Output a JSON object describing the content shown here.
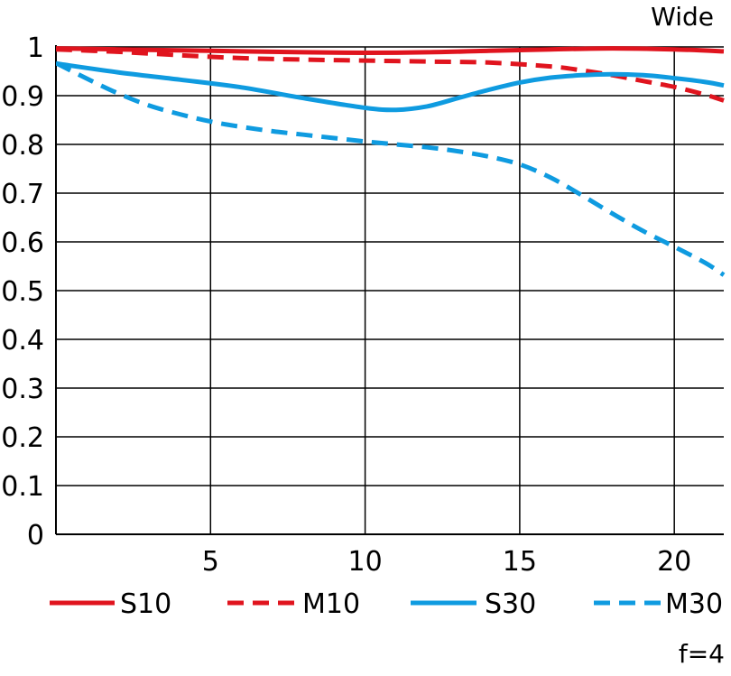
{
  "chart_data": {
    "type": "line",
    "title": "Wide",
    "footnote": "f=4",
    "xlabel": "",
    "ylabel": "",
    "xlim": [
      0,
      21.6
    ],
    "ylim": [
      0,
      1
    ],
    "x_ticks": [
      5,
      10,
      15,
      20
    ],
    "x_tick_labels": [
      "5",
      "10",
      "15",
      "20"
    ],
    "y_ticks": [
      0,
      0.1,
      0.2,
      0.3,
      0.4,
      0.5,
      0.6,
      0.7,
      0.8,
      0.9,
      1
    ],
    "y_tick_labels": [
      "0",
      "0.1",
      "0.2",
      "0.3",
      "0.4",
      "0.5",
      "0.6",
      "0.7",
      "0.8",
      "0.9",
      "1"
    ],
    "grid": true,
    "legend_position": "bottom",
    "series": [
      {
        "name": "S10",
        "color": "#e0141e",
        "dash": "solid",
        "x": [
          0,
          2,
          4,
          6,
          8,
          10,
          12,
          14,
          16,
          18,
          20,
          21.6
        ],
        "y": [
          0.997,
          0.995,
          0.993,
          0.991,
          0.989,
          0.988,
          0.989,
          0.992,
          0.995,
          0.997,
          0.995,
          0.991
        ]
      },
      {
        "name": "M10",
        "color": "#e0141e",
        "dash": "dashed",
        "x": [
          0,
          2,
          4,
          6,
          8,
          10,
          12,
          14,
          16,
          17,
          18,
          19,
          20,
          21,
          21.6
        ],
        "y": [
          0.995,
          0.99,
          0.983,
          0.977,
          0.974,
          0.972,
          0.97,
          0.968,
          0.96,
          0.952,
          0.942,
          0.93,
          0.918,
          0.902,
          0.89
        ]
      },
      {
        "name": "S30",
        "color": "#0f9be0",
        "dash": "solid",
        "x": [
          0,
          2,
          4,
          6,
          8,
          10,
          11,
          12,
          13,
          14,
          15,
          16,
          17,
          18,
          19,
          20,
          21,
          21.6
        ],
        "y": [
          0.966,
          0.948,
          0.933,
          0.917,
          0.895,
          0.875,
          0.871,
          0.878,
          0.895,
          0.912,
          0.927,
          0.937,
          0.942,
          0.944,
          0.942,
          0.936,
          0.928,
          0.921
        ]
      },
      {
        "name": "M30",
        "color": "#0f9be0",
        "dash": "dashed",
        "x": [
          0,
          1,
          2,
          3,
          4,
          5,
          6,
          7,
          8,
          9,
          10,
          11,
          12,
          13,
          14,
          15,
          16,
          17,
          18,
          19,
          20,
          21,
          21.6
        ],
        "y": [
          0.967,
          0.935,
          0.905,
          0.88,
          0.862,
          0.847,
          0.836,
          0.827,
          0.82,
          0.813,
          0.806,
          0.8,
          0.794,
          0.786,
          0.775,
          0.759,
          0.732,
          0.696,
          0.658,
          0.622,
          0.59,
          0.557,
          0.532
        ]
      }
    ]
  }
}
